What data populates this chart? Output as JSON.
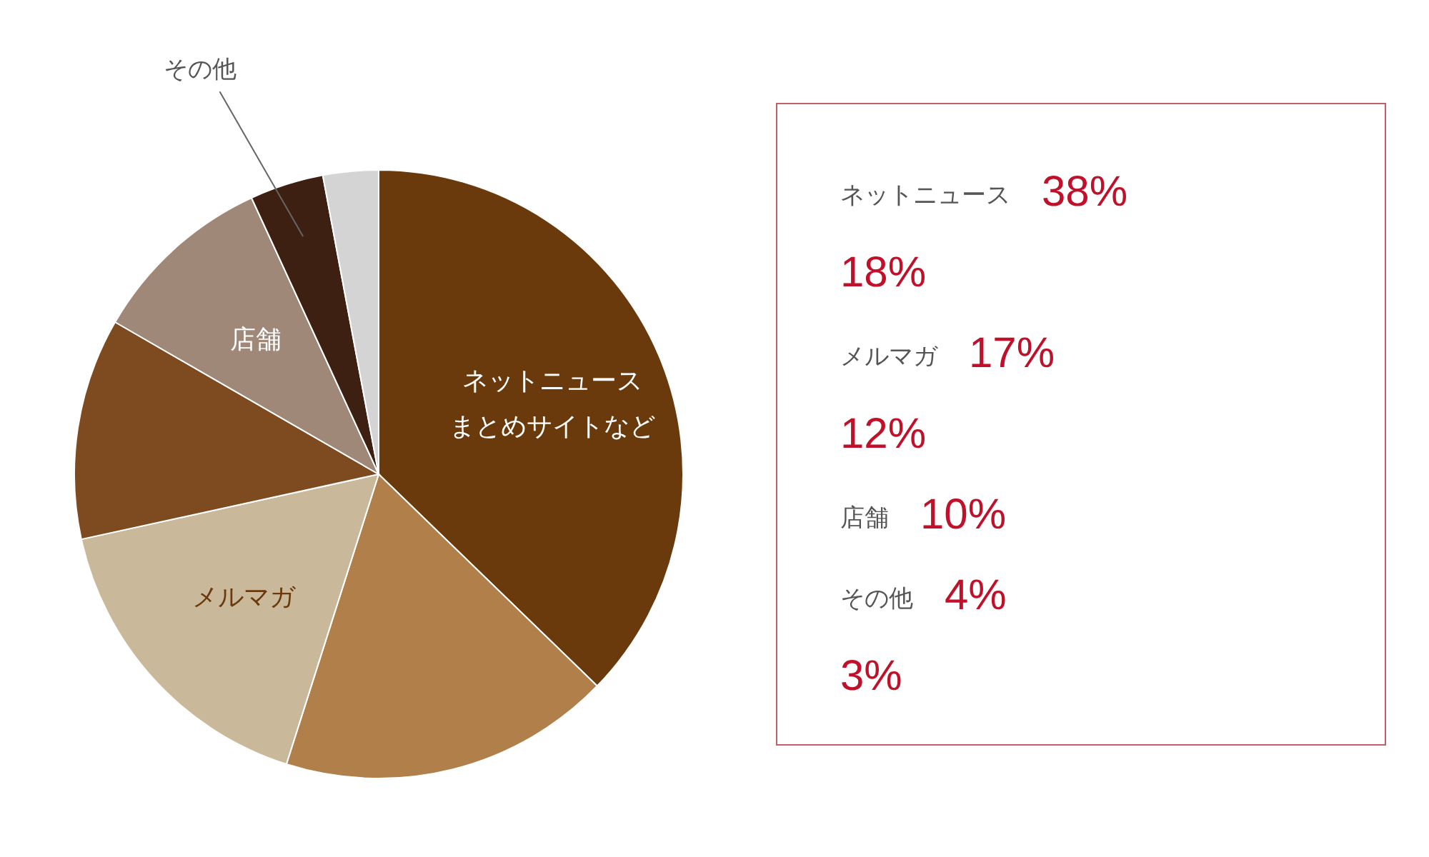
{
  "chart_data": [
    {
      "type": "pie",
      "categories": [
        "ネットニュース",
        null,
        "メルマガ",
        null,
        "店舗",
        "その他",
        null
      ],
      "values": [
        38,
        18,
        17,
        12,
        10,
        4,
        3
      ],
      "colors": [
        "#6b3a0c",
        "#b07f4a",
        "#c9b99a",
        "#7e4a1f",
        "#a08878",
        "#3e2012",
        "#d4d4d4"
      ],
      "annotations": [
        {
          "text": "まとめサイトなど",
          "x": "ネットニュース"
        }
      ]
    },
    {
      "type": "other",
      "annotations": [
        "ネットニュース 38%",
        "18%",
        "メルマガ 17%",
        "12%",
        "店舗 10%",
        "その他 4%",
        "3%"
      ]
    }
  ]
}
